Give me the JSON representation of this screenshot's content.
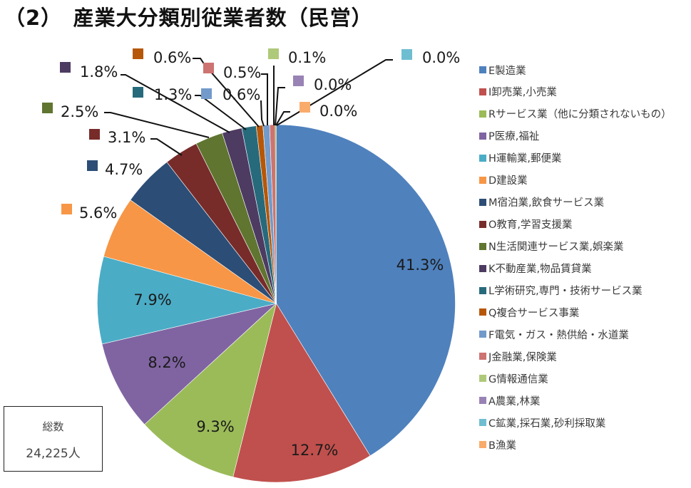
{
  "title": "（2）　産業大分類別従業者数（民営）",
  "total_box": {
    "label": "総数",
    "value": "24,225人"
  },
  "chart_data": {
    "type": "pie",
    "title": "（2）　産業大分類別従業者数（民営）",
    "start_angle_deg": 0,
    "direction": "clockwise",
    "legend_position": "right",
    "categories": [
      "E製造業",
      "I卸売業,小売業",
      "Rサービス業（他に分類されないもの）",
      "P医療,福祉",
      "H運輸業,郵便業",
      "D建設業",
      "M宿泊業,飲食サービス業",
      "O教育,学習支援業",
      "N生活関連サービス業,娯楽業",
      "K不動産業,物品賃貸業",
      "L学術研究,専門・技術サービス業",
      "Q複合サービス事業",
      "F電気・ガス・熱供給・水道業",
      "J金融業,保険業",
      "G情報通信業",
      "A農業,林業",
      "C鉱業,採石業,砂利採取業",
      "B漁業"
    ],
    "values": [
      41.3,
      12.7,
      9.3,
      8.2,
      7.9,
      5.6,
      4.7,
      3.1,
      2.5,
      1.8,
      1.3,
      0.6,
      0.6,
      0.5,
      0.1,
      0.0,
      0.0,
      0.0
    ],
    "labels": [
      "41.3%",
      "12.7%",
      "9.3%",
      "8.2%",
      "7.9%",
      "5.6%",
      "4.7%",
      "3.1%",
      "2.5%",
      "1.8%",
      "1.3%",
      "0.6%",
      "0.6%",
      "0.5%",
      "0.1%",
      "0.0%",
      "0.0%",
      "0.0%"
    ],
    "colors": [
      "#4f81bd",
      "#c0504d",
      "#9bbb59",
      "#8064a2",
      "#4bacc6",
      "#f79646",
      "#2c4d75",
      "#772c2a",
      "#5f7530",
      "#4d3b62",
      "#276a7c",
      "#b65708",
      "#729aca",
      "#cd7371",
      "#afc97a",
      "#9983b5",
      "#6fbdd1",
      "#f9ab6b"
    ],
    "total": "24,225人"
  },
  "legend": {
    "items": [
      "E製造業",
      "I卸売業,小売業",
      "Rサービス業（他に分類されないもの）",
      "P医療,福祉",
      "H運輸業,郵便業",
      "D建設業",
      "M宿泊業,飲食サービス業",
      "O教育,学習支援業",
      "N生活関連サービス業,娯楽業",
      "K不動産業,物品賃貸業",
      "L学術研究,専門・技術サービス業",
      "Q複合サービス事業",
      "F電気・ガス・熱供給・水道業",
      "J金融業,保険業",
      "G情報通信業",
      "A農業,林業",
      "C鉱業,採石業,砂利採取業",
      "B漁業"
    ]
  }
}
